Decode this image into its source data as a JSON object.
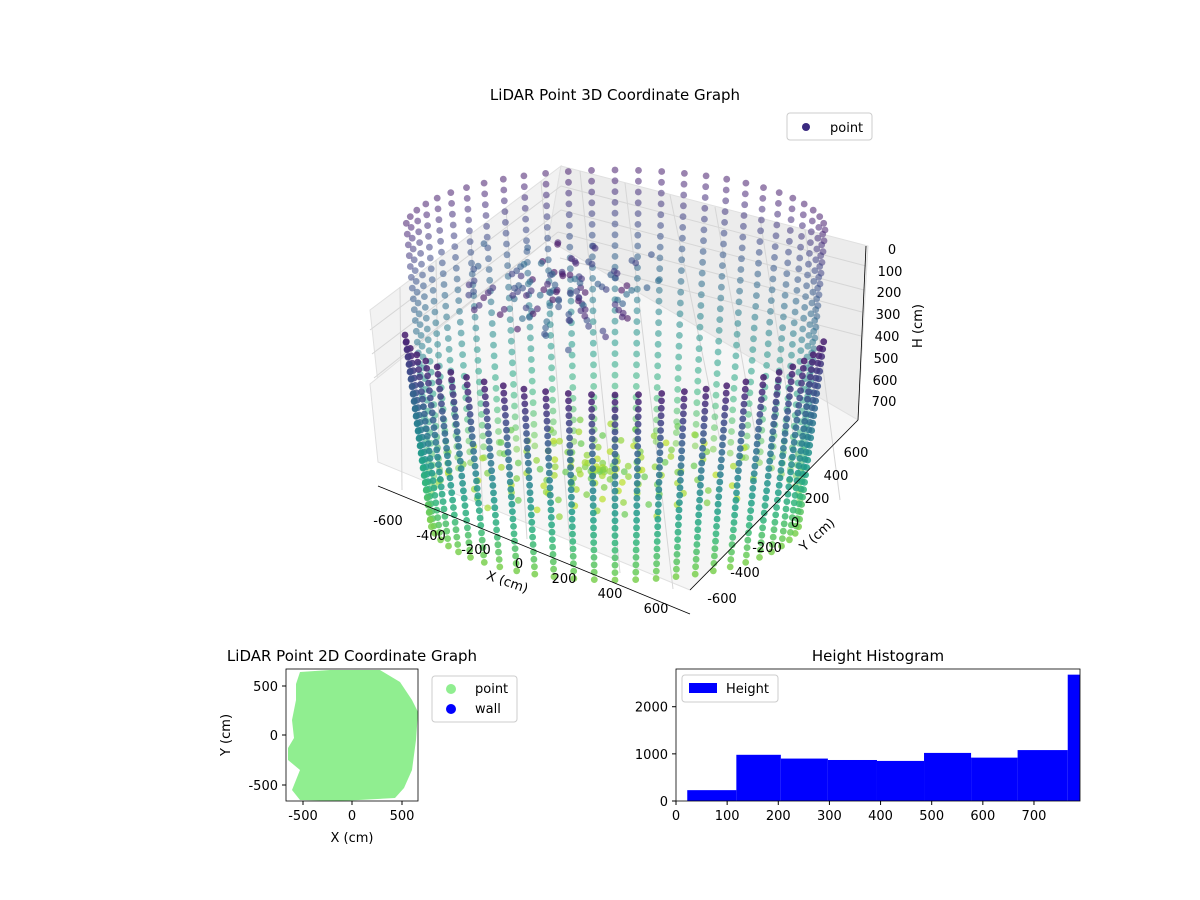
{
  "chart_data": [
    {
      "type": "scatter",
      "title": "LiDAR Point 3D Coordinate Graph",
      "xlabel": "X (cm)",
      "ylabel": "Y (cm)",
      "zlabel": "H (cm)",
      "xlim": [
        -650,
        650
      ],
      "ylim": [
        -650,
        650
      ],
      "zlim": [
        780,
        0
      ],
      "x_ticks": [
        "-600",
        "-400",
        "-200",
        "0",
        "200",
        "400",
        "600"
      ],
      "y_ticks": [
        "-600",
        "-400",
        "-200",
        "0",
        "200",
        "400",
        "600"
      ],
      "z_ticks": [
        "0",
        "100",
        "200",
        "300",
        "400",
        "500",
        "600",
        "700"
      ],
      "z_inverted": true,
      "colormap": "viridis",
      "legend": [
        {
          "label": "point",
          "color": "#3b2a80"
        }
      ],
      "legend_position": "top-right",
      "grid": true
    },
    {
      "type": "scatter",
      "title": "LiDAR Point 2D Coordinate Graph",
      "xlabel": "X (cm)",
      "ylabel": "Y (cm)",
      "xlim": [
        -660,
        660
      ],
      "ylim": [
        -660,
        660
      ],
      "x_ticks": [
        "-500",
        "0",
        "500"
      ],
      "y_ticks": [
        "500",
        "0",
        "-500"
      ],
      "series": [
        {
          "name": "point",
          "color": "#90ee90"
        },
        {
          "name": "wall",
          "color": "#0000ff"
        }
      ],
      "legend_position": "outside-right",
      "grid": false
    },
    {
      "type": "bar",
      "title": "Height Histogram",
      "xlabel": "",
      "ylabel": "",
      "xlim": [
        0,
        790
      ],
      "ylim": [
        0,
        2800
      ],
      "x_ticks": [
        "0",
        "100",
        "200",
        "300",
        "400",
        "500",
        "600",
        "700"
      ],
      "y_ticks": [
        "0",
        "1000",
        "2000"
      ],
      "bins": [
        {
          "start": 22,
          "end": 118,
          "count": 230
        },
        {
          "start": 118,
          "end": 205,
          "count": 980
        },
        {
          "start": 205,
          "end": 297,
          "count": 900
        },
        {
          "start": 297,
          "end": 393,
          "count": 870
        },
        {
          "start": 393,
          "end": 485,
          "count": 850
        },
        {
          "start": 485,
          "end": 577,
          "count": 1020
        },
        {
          "start": 577,
          "end": 668,
          "count": 920
        },
        {
          "start": 668,
          "end": 766,
          "count": 1080
        },
        {
          "start": 766,
          "end": 790,
          "count": 2680
        }
      ],
      "series": [
        {
          "name": "Height",
          "color": "#0000ff"
        }
      ],
      "legend_position": "top-left",
      "grid": false
    }
  ]
}
